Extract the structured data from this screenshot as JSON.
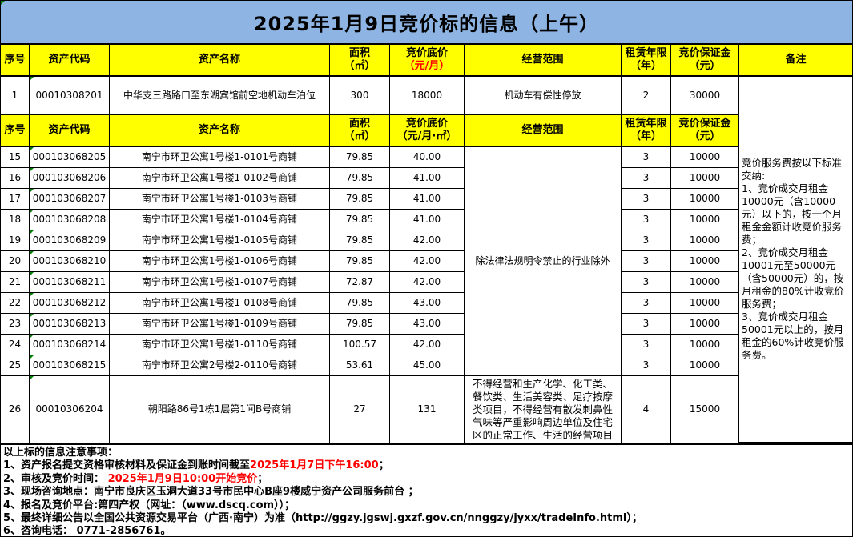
{
  "title": "2025年1月9日竞价标的信息（上午）",
  "colors": {
    "title_bg": "#8DB4E2",
    "header_bg": "#FFFF00",
    "highlight_red": "#FF0000",
    "flag_green": "#008000",
    "border": "#000000"
  },
  "table": {
    "header1": {
      "seq": "序号",
      "code": "资产代码",
      "name": "资产名称",
      "area": "面积\n（㎡）",
      "price": "竞价底价",
      "price_unit": "（元/月）",
      "scope": "经营范围",
      "term": "租赁年限\n（年）",
      "deposit": "竞价保证金\n（元）",
      "remark": "备注"
    },
    "row1": {
      "seq": "1",
      "code": "00010308201",
      "name": "中华支三路路口至东湖宾馆前空地机动车泊位",
      "area": "300",
      "price": "18000",
      "scope": "机动车有偿性停放",
      "term": "2",
      "deposit": "30000"
    },
    "header2": {
      "seq": "序号",
      "code": "资产代码",
      "name": "资产名称",
      "area": "面积\n（㎡）",
      "price": "竞价底价",
      "price_unit": "（元/月·㎡）",
      "scope": "经营范围",
      "term": "租赁年限\n（年）",
      "deposit": "竞价保证金\n（元）"
    },
    "rows": [
      {
        "seq": "15",
        "code": "000103068205",
        "name": "南宁市环卫公寓1号楼1-0101号商铺",
        "area": "79.85",
        "price": "40.00",
        "term": "3",
        "deposit": "10000"
      },
      {
        "seq": "16",
        "code": "000103068206",
        "name": "南宁市环卫公寓1号楼1-0102号商铺",
        "area": "79.85",
        "price": "41.00",
        "term": "3",
        "deposit": "10000"
      },
      {
        "seq": "17",
        "code": "000103068207",
        "name": "南宁市环卫公寓1号楼1-0103号商铺",
        "area": "79.85",
        "price": "41.00",
        "term": "3",
        "deposit": "10000"
      },
      {
        "seq": "18",
        "code": "000103068208",
        "name": "南宁市环卫公寓1号楼1-0104号商铺",
        "area": "79.85",
        "price": "41.00",
        "term": "3",
        "deposit": "10000"
      },
      {
        "seq": "19",
        "code": "000103068209",
        "name": "南宁市环卫公寓1号楼1-0105号商铺",
        "area": "79.85",
        "price": "42.00",
        "term": "3",
        "deposit": "10000"
      },
      {
        "seq": "20",
        "code": "000103068210",
        "name": "南宁市环卫公寓1号楼1-0106号商铺",
        "area": "79.85",
        "price": "42.00",
        "term": "3",
        "deposit": "10000"
      },
      {
        "seq": "21",
        "code": "000103068211",
        "name": "南宁市环卫公寓1号楼1-0107号商铺",
        "area": "72.87",
        "price": "42.00",
        "term": "3",
        "deposit": "10000"
      },
      {
        "seq": "22",
        "code": "000103068212",
        "name": "南宁市环卫公寓1号楼1-0108号商铺",
        "area": "79.85",
        "price": "43.00",
        "term": "3",
        "deposit": "10000"
      },
      {
        "seq": "23",
        "code": "000103068213",
        "name": "南宁市环卫公寓1号楼1-0109号商铺",
        "area": "79.85",
        "price": "43.00",
        "term": "3",
        "deposit": "10000"
      },
      {
        "seq": "24",
        "code": "000103068214",
        "name": "南宁市环卫公寓1号楼1-0110号商铺",
        "area": "100.57",
        "price": "42.00",
        "term": "3",
        "deposit": "10000"
      },
      {
        "seq": "25",
        "code": "000103068215",
        "name": "南宁市环卫公寓2号楼2-0110号商铺",
        "area": "53.61",
        "price": "45.00",
        "term": "3",
        "deposit": "10000"
      }
    ],
    "scope_merged": "除法律法规明令禁止的行业除外",
    "row26": {
      "seq": "26",
      "code": "00010306204",
      "name": "朝阳路86号1栋1层第1间B号商铺",
      "area": "27",
      "price": "131",
      "scope": "不得经营和生产化学、化工类、餐饮类、生活美容类、足疗按摩类项目，不得经营有散发刺鼻性气味等严重影响周边单位及住宅区的正常工作、生活的经营项目",
      "term": "4",
      "deposit": "15000"
    },
    "remark_merged": "竞价服务费按以下标准交纳:\n1、竞价成交月租金10000元（含10000元）以下的，按一个月租金金额计收竞价服务费；\n2、竞价成交月租金10001元至50000元（含50000元）的，按月租金的80%计收竞价服务费；\n3、竞价成交月租金50001元以上的，按月租金的60%计收竞价服务费。"
  },
  "notice": {
    "lines": [
      [
        {
          "text": "以上标的信息注意事项：",
          "red": false
        }
      ],
      [
        {
          "text": "1、资产报名提交资格审核材料及保证金到账时间截至",
          "red": false
        },
        {
          "text": "2025年1月7日下午16:00",
          "red": true
        },
        {
          "text": "；",
          "red": false
        }
      ],
      [
        {
          "text": "2、审核及竞价时间： ",
          "red": false
        },
        {
          "text": "2025年1月9日10:00开始竞价",
          "red": true
        },
        {
          "text": "；",
          "red": false
        }
      ],
      [
        {
          "text": "3、现场咨询地点：南宁市良庆区玉洞大道33号市民中心B座9楼威宁资产公司服务前台 ；",
          "red": false
        }
      ],
      [
        {
          "text": "4、报名及竞价平台:第四产权（网址：（www.dscq.com））；",
          "red": false
        }
      ],
      [
        {
          "text": "5、最终详细公告以全国公共资源交易平台（广西·南宁）为准（http://ggzy.jgswj.gxzf.gov.cn/nnggzy/jyxx/tradeInfo.html）；",
          "red": false
        }
      ],
      [
        {
          "text": "6、咨询电话： 0771-2856761。",
          "red": false
        }
      ]
    ]
  }
}
